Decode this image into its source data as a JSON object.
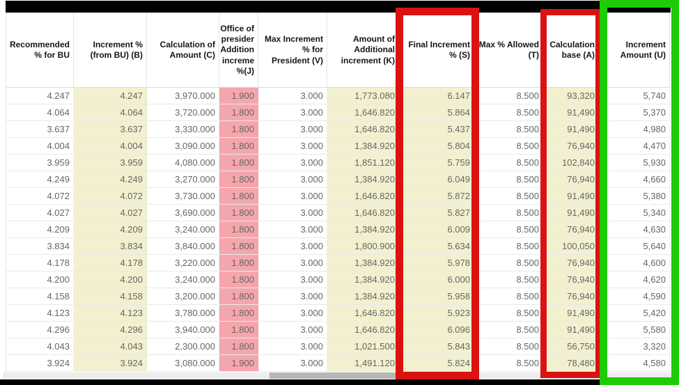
{
  "colors": {
    "highlight_yellow": "#f3f0d0",
    "highlight_pink": "#f5a6ac",
    "annotation_red": "#da1311",
    "annotation_green": "#1ecb06",
    "redaction_black": "#000000",
    "data_text": "#666666",
    "header_text": "#151515"
  },
  "table": {
    "columns": [
      {
        "label": "Recommended % for BU",
        "highlight": null
      },
      {
        "label": "Increment % (from BU) (B)",
        "highlight": "yellow"
      },
      {
        "label": "Calculation of Amount (C)",
        "highlight": null
      },
      {
        "label": "Office of presider Addition increme %(J)",
        "highlight": "pink"
      },
      {
        "label": "Max Increment % for President (V)",
        "highlight": null
      },
      {
        "label": "Amount of Additional increment (K)",
        "highlight": "yellow"
      },
      {
        "label": "Final Increment % (S)",
        "highlight": "yellow"
      },
      {
        "label": "Max % Allowed (T)",
        "highlight": null
      },
      {
        "label": "Calculation base (A)",
        "highlight": "yellow"
      },
      {
        "label": "Increment Amount (U)",
        "highlight": null
      }
    ],
    "rows": [
      [
        "4.247",
        "4.247",
        "3,970.000",
        "1.900",
        "3.000",
        "1,773.080",
        "6.147",
        "8.500",
        "93,320",
        "5,740"
      ],
      [
        "4.064",
        "4.064",
        "3,720.000",
        "1.800",
        "3.000",
        "1,646.820",
        "5.864",
        "8.500",
        "91,490",
        "5,370"
      ],
      [
        "3.637",
        "3.637",
        "3,330.000",
        "1.800",
        "3.000",
        "1,646.820",
        "5.437",
        "8.500",
        "91,490",
        "4,980"
      ],
      [
        "4.004",
        "4.004",
        "3,090.000",
        "1.800",
        "3.000",
        "1,384.920",
        "5.804",
        "8.500",
        "76,940",
        "4,470"
      ],
      [
        "3.959",
        "3.959",
        "4,080.000",
        "1.800",
        "3.000",
        "1,851.120",
        "5.759",
        "8.500",
        "102,840",
        "5,930"
      ],
      [
        "4.249",
        "4.249",
        "3,270.000",
        "1.800",
        "3.000",
        "1,384.920",
        "6.049",
        "8.500",
        "76,940",
        "4,660"
      ],
      [
        "4.072",
        "4.072",
        "3,730.000",
        "1.800",
        "3.000",
        "1,646.820",
        "5.872",
        "8.500",
        "91,490",
        "5,380"
      ],
      [
        "4.027",
        "4.027",
        "3,690.000",
        "1.800",
        "3.000",
        "1,646.820",
        "5.827",
        "8.500",
        "91,490",
        "5,340"
      ],
      [
        "4.209",
        "4.209",
        "3,240.000",
        "1.800",
        "3.000",
        "1,384.920",
        "6.009",
        "8.500",
        "76,940",
        "4,630"
      ],
      [
        "3.834",
        "3.834",
        "3,840.000",
        "1.800",
        "3.000",
        "1,800.900",
        "5.634",
        "8.500",
        "100,050",
        "5,640"
      ],
      [
        "4.178",
        "4.178",
        "3,220.000",
        "1.800",
        "3.000",
        "1,384.920",
        "5.978",
        "8.500",
        "76,940",
        "4,600"
      ],
      [
        "4.200",
        "4.200",
        "3,240.000",
        "1.800",
        "3.000",
        "1,384.920",
        "6.000",
        "8.500",
        "76,940",
        "4,620"
      ],
      [
        "4.158",
        "4.158",
        "3,200.000",
        "1.800",
        "3.000",
        "1,384.920",
        "5.958",
        "8.500",
        "76,940",
        "4,590"
      ],
      [
        "4.123",
        "4.123",
        "3,780.000",
        "1.800",
        "3.000",
        "1,646.820",
        "5.923",
        "8.500",
        "91,490",
        "5,420"
      ],
      [
        "4.296",
        "4.296",
        "3,940.000",
        "1.800",
        "3.000",
        "1,646.820",
        "6.096",
        "8.500",
        "91,490",
        "5,580"
      ],
      [
        "4.043",
        "4.043",
        "2,300.000",
        "1.800",
        "3.000",
        "1,021.500",
        "5.843",
        "8.500",
        "56,750",
        "3,320"
      ],
      [
        "3.924",
        "3.924",
        "3,080.000",
        "1.900",
        "3.000",
        "1,491.120",
        "5.824",
        "8.500",
        "78,480",
        "4,580"
      ]
    ]
  },
  "annotations": [
    {
      "name": "red-box-final-increment",
      "color": "#da1311",
      "marks_column": "Final Increment % (S)"
    },
    {
      "name": "red-box-calculation-base",
      "color": "#da1311",
      "marks_column": "Calculation base (A)"
    },
    {
      "name": "green-box-increment-amount",
      "color": "#1ecb06",
      "marks_column": "Increment Amount (U)"
    }
  ]
}
